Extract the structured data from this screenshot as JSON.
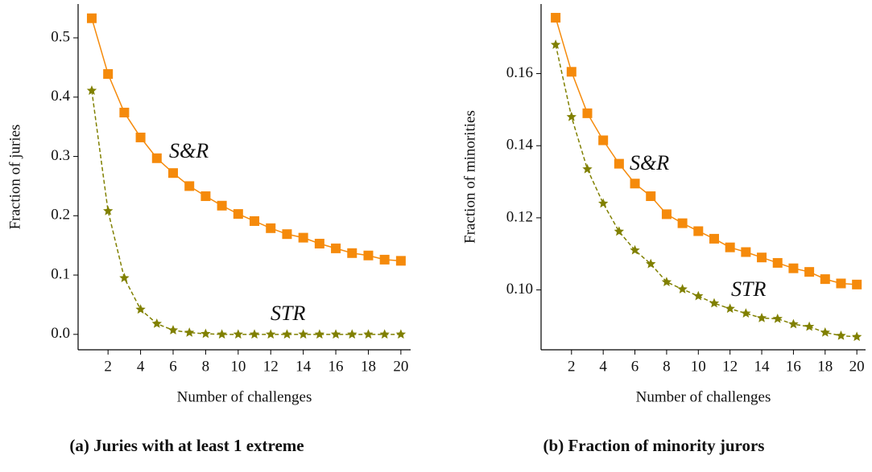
{
  "chart_data": [
    {
      "type": "line",
      "caption": "(a) Juries with at least 1 extreme",
      "xlabel": "Number of challenges",
      "ylabel": "Fraction of juries",
      "x": [
        1,
        2,
        3,
        4,
        5,
        6,
        7,
        8,
        9,
        10,
        11,
        12,
        13,
        14,
        15,
        16,
        17,
        18,
        19,
        20
      ],
      "series": [
        {
          "name": "S&R",
          "color": "#f58a0b",
          "marker": "square",
          "linestyle": "solid",
          "values": [
            0.533,
            0.439,
            0.374,
            0.332,
            0.297,
            0.272,
            0.25,
            0.233,
            0.217,
            0.203,
            0.191,
            0.179,
            0.169,
            0.163,
            0.153,
            0.145,
            0.137,
            0.133,
            0.126,
            0.124
          ]
        },
        {
          "name": "STR",
          "color": "#808000",
          "marker": "star",
          "linestyle": "dashed",
          "values": [
            0.411,
            0.208,
            0.095,
            0.042,
            0.018,
            0.007,
            0.003,
            0.001,
            0,
            0,
            0,
            0,
            0,
            0,
            0,
            0,
            0,
            0,
            0,
            0
          ]
        }
      ],
      "xlim": [
        0.16,
        20.6
      ],
      "ylim": [
        -0.026,
        0.557
      ],
      "xticks": [
        2,
        4,
        6,
        8,
        10,
        12,
        14,
        16,
        18,
        20
      ],
      "yticks": [
        {
          "value": 0,
          "label": "0.0"
        },
        0.1,
        0.2,
        0.3,
        0.4,
        0.5
      ]
    },
    {
      "type": "line",
      "caption": "(b) Fraction of minority jurors",
      "xlabel": "Number of challenges",
      "ylabel": "Fraction of minorities",
      "x": [
        1,
        2,
        3,
        4,
        5,
        6,
        7,
        8,
        9,
        10,
        11,
        12,
        13,
        14,
        15,
        16,
        17,
        18,
        19,
        20
      ],
      "series": [
        {
          "name": "S&R",
          "color": "#f58a0b",
          "marker": "square",
          "linestyle": "solid",
          "values": [
            0.1755,
            0.1605,
            0.149,
            0.1415,
            0.135,
            0.1295,
            0.126,
            0.121,
            0.1185,
            0.1163,
            0.1142,
            0.1118,
            0.1105,
            0.109,
            0.1075,
            0.106,
            0.105,
            0.103,
            0.1018,
            0.1015
          ]
        },
        {
          "name": "STR",
          "color": "#808000",
          "marker": "star",
          "linestyle": "dashed",
          "values": [
            0.168,
            0.148,
            0.1335,
            0.124,
            0.1162,
            0.111,
            0.1072,
            0.1022,
            0.1002,
            0.0983,
            0.0963,
            0.0948,
            0.0935,
            0.0922,
            0.092,
            0.0905,
            0.0898,
            0.0882,
            0.0873,
            0.087
          ]
        }
      ],
      "xlim": [
        0.08,
        20.55
      ],
      "ylim": [
        0.0834,
        0.1793
      ],
      "xticks": [
        2,
        4,
        6,
        8,
        10,
        12,
        14,
        16,
        18,
        20
      ],
      "yticks": [
        {
          "value": 0.1,
          "label": "0.10"
        },
        0.12,
        0.14,
        0.16
      ]
    }
  ]
}
